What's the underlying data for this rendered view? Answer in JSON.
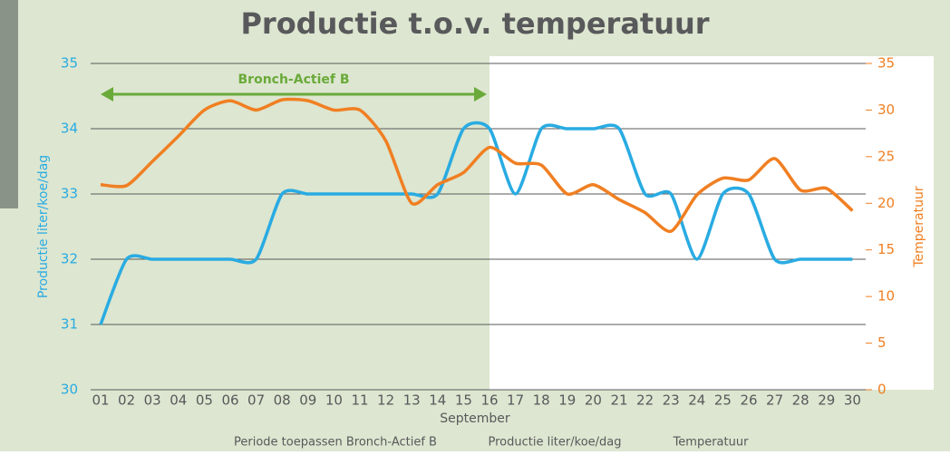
{
  "chart_data": {
    "type": "line",
    "title": "Productie t.o.v. temperatuur",
    "x_label": "September",
    "y_label": "Productie liter/koe/dag",
    "y2_label": "Temperatuur",
    "categories": [
      "01",
      "02",
      "03",
      "04",
      "05",
      "06",
      "07",
      "08",
      "09",
      "10",
      "11",
      "12",
      "13",
      "14",
      "15",
      "16",
      "17",
      "18",
      "19",
      "20",
      "21",
      "22",
      "23",
      "24",
      "25",
      "26",
      "27",
      "28",
      "29",
      "30"
    ],
    "series": [
      {
        "name": "Productie liter/koe/dag",
        "color": "#29abe2",
        "axis": "y",
        "values": [
          31,
          32,
          32,
          32,
          32,
          32,
          32,
          33,
          33,
          33,
          33,
          33,
          33,
          33,
          34,
          34,
          33,
          34,
          34,
          34,
          34,
          33,
          33,
          32,
          33,
          33,
          32,
          32,
          32,
          32
        ]
      },
      {
        "name": "Temperatuur",
        "color": "#f07f22",
        "axis": "y2",
        "values": [
          22,
          21.9,
          24.5,
          27.2,
          30,
          31,
          30,
          31.1,
          31,
          30,
          30,
          26.7,
          20,
          22,
          23.3,
          26,
          24.3,
          24.1,
          21,
          22,
          20.4,
          19,
          17,
          20.9,
          22.7,
          22.5,
          24.8,
          21.4,
          21.6,
          19.2
        ]
      }
    ],
    "period": {
      "name": "Periode toepassen Bronch-Actief B",
      "from": "01",
      "to": "16",
      "color": "#dde6d0"
    },
    "annotation": {
      "text": "Bronch-Actief B",
      "from": "01",
      "to": "16",
      "color": "#6aaa3a"
    },
    "ylim": [
      30,
      35
    ],
    "yticks": [
      30,
      31,
      32,
      33,
      34,
      35
    ],
    "y2lim": [
      0,
      35
    ],
    "y2ticks": [
      0,
      5,
      10,
      15,
      20,
      25,
      30,
      35
    ],
    "grid": true
  }
}
